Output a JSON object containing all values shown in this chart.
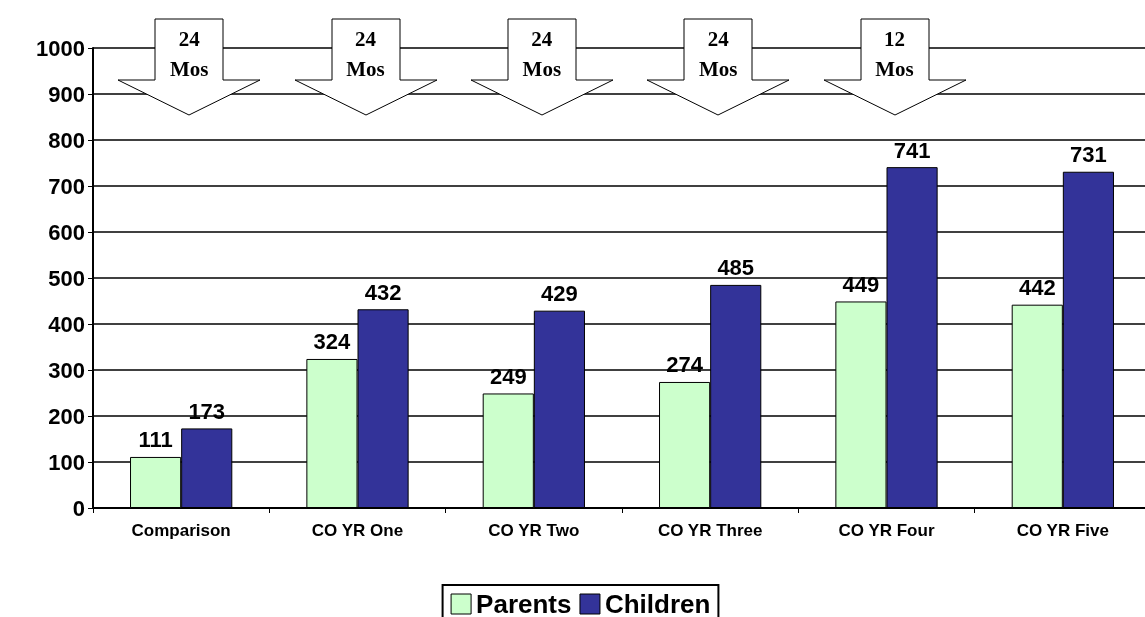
{
  "chart_data": {
    "type": "bar",
    "categories": [
      "Comparison",
      "CO YR One",
      "CO YR Two",
      "CO YR Three",
      "CO YR Four",
      "CO YR Five"
    ],
    "series": [
      {
        "name": "Parents",
        "color": "#ccffcc",
        "values": [
          111,
          324,
          249,
          274,
          449,
          442
        ]
      },
      {
        "name": "Children",
        "color": "#333399",
        "values": [
          173,
          432,
          429,
          485,
          741,
          731
        ]
      }
    ],
    "ylim": [
      0,
      1000
    ],
    "yticks": [
      0,
      100,
      200,
      300,
      400,
      500,
      600,
      700,
      800,
      900,
      1000
    ],
    "grid": "y",
    "legend": "bottom",
    "data_labels": true,
    "annotations": [
      "24 Mos",
      "24 Mos",
      "24 Mos",
      "24 Mos",
      "12 Mos"
    ]
  }
}
